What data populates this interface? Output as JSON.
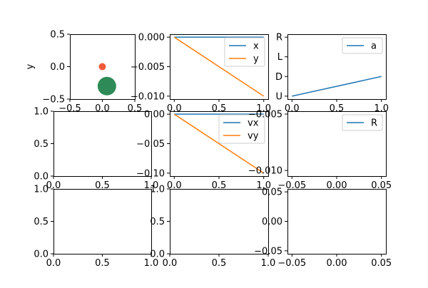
{
  "figure": {
    "background": "#ffffff",
    "series_colors": [
      "#1f77b4",
      "#ff7f0e"
    ]
  },
  "chart_data": [
    {
      "type": "scatter",
      "title": "",
      "xlabel": "",
      "ylabel": "y",
      "xlim": [
        -0.5,
        0.5
      ],
      "ylim": [
        -0.5,
        0.5
      ],
      "x_ticks": [
        "−0.5",
        "0.0",
        "0.5"
      ],
      "y_ticks": [
        "−0.5",
        "0.0",
        "0.5"
      ],
      "points": [
        {
          "x": 0.0,
          "y": 0.0,
          "color": "#f15a3b",
          "size": "small"
        },
        {
          "x": 0.07,
          "y": -0.3,
          "color": "#2e8b57",
          "size": "large"
        }
      ],
      "grid": false
    },
    {
      "type": "line",
      "title": "",
      "xlim": [
        -0.05,
        1.05
      ],
      "ylim": [
        -0.0105,
        0.0005
      ],
      "x_ticks": [
        "0.0",
        "0.5",
        "1.0"
      ],
      "y_ticks": [
        "0.000",
        "−0.005",
        "−0.010"
      ],
      "x": [
        0,
        1
      ],
      "series": [
        {
          "name": "x",
          "values": [
            0,
            0
          ],
          "color": "#1f77b4"
        },
        {
          "name": "y",
          "values": [
            0,
            -0.01
          ],
          "color": "#ff7f0e"
        }
      ],
      "legend": "upper right",
      "grid": false
    },
    {
      "type": "line",
      "title": "",
      "xlim": [
        -0.05,
        1.05
      ],
      "ylim": [
        -0.15,
        3.15
      ],
      "categories": [
        "U",
        "D",
        "L",
        "R"
      ],
      "x_ticks": [
        "0.0",
        "0.5",
        "1.0"
      ],
      "y_ticks": [
        "U",
        "D",
        "L",
        "R"
      ],
      "x": [
        0,
        1
      ],
      "series": [
        {
          "name": "a",
          "values": [
            0,
            1
          ],
          "color": "#1f77b4"
        }
      ],
      "legend": "upper right",
      "grid": false
    },
    {
      "type": "line",
      "title": "",
      "xlim": [
        0,
        1
      ],
      "ylim": [
        0,
        1
      ],
      "x_ticks": [
        "0.0",
        "0.5",
        "1.0"
      ],
      "y_ticks": [
        "0.0",
        "0.5",
        "1.0"
      ],
      "series": [],
      "grid": false
    },
    {
      "type": "line",
      "title": "",
      "xlim": [
        -0.05,
        1.05
      ],
      "ylim": [
        -0.105,
        0.005
      ],
      "x_ticks": [
        "0.0",
        "0.5",
        "1.0"
      ],
      "y_ticks": [
        "0.00",
        "−0.05",
        "−0.10"
      ],
      "x": [
        0,
        1
      ],
      "series": [
        {
          "name": "vx",
          "values": [
            0,
            0
          ],
          "color": "#1f77b4"
        },
        {
          "name": "vy",
          "values": [
            0,
            -0.1
          ],
          "color": "#ff7f0e"
        }
      ],
      "legend": "upper right",
      "grid": false
    },
    {
      "type": "line",
      "title": "",
      "xlim": [
        -0.055,
        0.055
      ],
      "ylim": [
        -0.0105,
        -0.00475
      ],
      "x_ticks": [
        "−0.05",
        "0.00",
        "0.05"
      ],
      "y_ticks": [
        "−0.005",
        "−0.010"
      ],
      "series": [
        {
          "name": "R",
          "values": [],
          "color": "#1f77b4"
        }
      ],
      "legend": "upper right",
      "grid": false
    },
    {
      "type": "line",
      "title": "",
      "xlim": [
        0,
        1
      ],
      "ylim": [
        0,
        1
      ],
      "x_ticks": [
        "0.0",
        "0.5",
        "1.0"
      ],
      "y_ticks": [
        "0.0",
        "0.5",
        "1.0"
      ],
      "series": [],
      "grid": false
    },
    {
      "type": "line",
      "title": "",
      "xlim": [
        0,
        1
      ],
      "ylim": [
        0,
        1
      ],
      "x_ticks": [
        "0.0",
        "0.5",
        "1.0"
      ],
      "y_ticks": [
        "0.0",
        "0.5",
        "1.0"
      ],
      "series": [],
      "grid": false
    },
    {
      "type": "line",
      "title": "",
      "xlim": [
        -0.055,
        0.055
      ],
      "ylim": [
        -0.055,
        0.055
      ],
      "x_ticks": [
        "−0.05",
        "0.00",
        "0.05"
      ],
      "y_ticks": [
        "0.05",
        "0.00",
        "−0.05"
      ],
      "series": [],
      "grid": false
    }
  ]
}
